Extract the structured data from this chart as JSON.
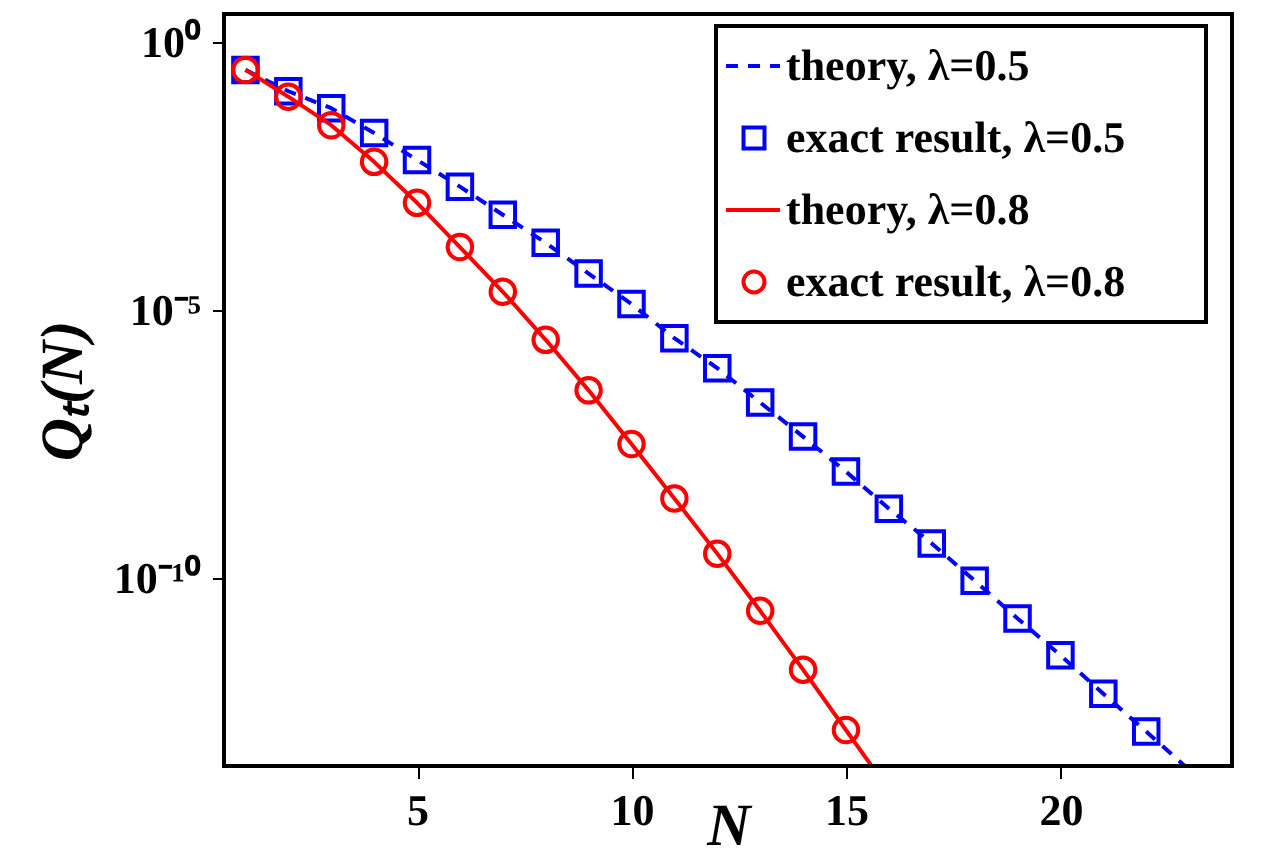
{
  "chart_data": {
    "type": "line",
    "xlabel": "N",
    "ylabel": "Qₜ(N)",
    "log": "y",
    "grid": false,
    "legend": "top right",
    "xlim": [
      0.5,
      24
    ],
    "xticks": [
      5,
      10,
      15,
      20
    ],
    "ylim": [
      3.2e-14,
      3.3
    ],
    "yticks": [
      {
        "value": 1,
        "label": "10⁰"
      },
      {
        "value": 1e-05,
        "label": "10⁻⁵"
      },
      {
        "value": 1e-10,
        "label": "10⁻¹⁰"
      }
    ],
    "series": [
      {
        "name": "theory, λ=0.5",
        "type": "line",
        "line_style": "dashed",
        "marker": "none",
        "color": "#0000ff",
        "x": [
          1,
          2,
          3,
          4,
          5,
          6,
          7,
          8,
          9,
          10,
          11,
          12,
          13,
          14,
          15,
          16,
          17,
          18,
          19,
          20,
          21,
          22,
          22.9
        ],
        "values": [
          0.3,
          0.12,
          0.058,
          0.02,
          0.0063,
          0.002,
          0.0006,
          0.00018,
          4.8e-05,
          1.3e-05,
          3e-06,
          8.3e-07,
          1.9e-07,
          4.4e-08,
          9.8e-09,
          2e-09,
          4.5e-10,
          9.1e-11,
          1.8e-11,
          3.7e-12,
          7.1e-13,
          1.4e-13,
          3.2e-14
        ]
      },
      {
        "name": "exact result, λ=0.5",
        "type": "scatter",
        "marker": "square",
        "color": "#0000ff",
        "x": [
          1,
          2,
          3,
          4,
          5,
          6,
          7,
          8,
          9,
          10,
          11,
          12,
          13,
          14,
          15,
          16,
          17,
          18,
          19,
          20,
          21,
          22
        ],
        "values": [
          0.3,
          0.12,
          0.058,
          0.02,
          0.0063,
          0.002,
          0.0006,
          0.00018,
          4.8e-05,
          1.3e-05,
          3e-06,
          8.3e-07,
          1.9e-07,
          4.4e-08,
          9.8e-09,
          2e-09,
          4.5e-10,
          9.1e-11,
          1.8e-11,
          3.7e-12,
          7.1e-13,
          1.4e-13
        ]
      },
      {
        "name": "theory, λ=0.8",
        "type": "line",
        "line_style": "solid",
        "marker": "none",
        "color": "#ff0000",
        "x": [
          1,
          2,
          3,
          4,
          5,
          6,
          7,
          8,
          9,
          10,
          11,
          12,
          13,
          14,
          15,
          15.6
        ],
        "values": [
          0.3,
          0.095,
          0.028,
          0.0058,
          0.001,
          0.00015,
          2.2e-05,
          2.8e-06,
          3.2e-07,
          3.2e-08,
          3.1e-09,
          2.9e-10,
          2.5e-11,
          2e-12,
          1.5e-13,
          3.2e-14
        ]
      },
      {
        "name": "exact result, λ=0.8",
        "type": "scatter",
        "marker": "circle",
        "color": "#ff0000",
        "x": [
          1,
          2,
          3,
          4,
          5,
          6,
          7,
          8,
          9,
          10,
          11,
          12,
          13,
          14,
          15
        ],
        "values": [
          0.3,
          0.095,
          0.028,
          0.0058,
          0.001,
          0.00015,
          2.2e-05,
          2.8e-06,
          3.2e-07,
          3.2e-08,
          3.1e-09,
          2.9e-10,
          2.5e-11,
          2e-12,
          1.5e-13
        ]
      }
    ]
  }
}
